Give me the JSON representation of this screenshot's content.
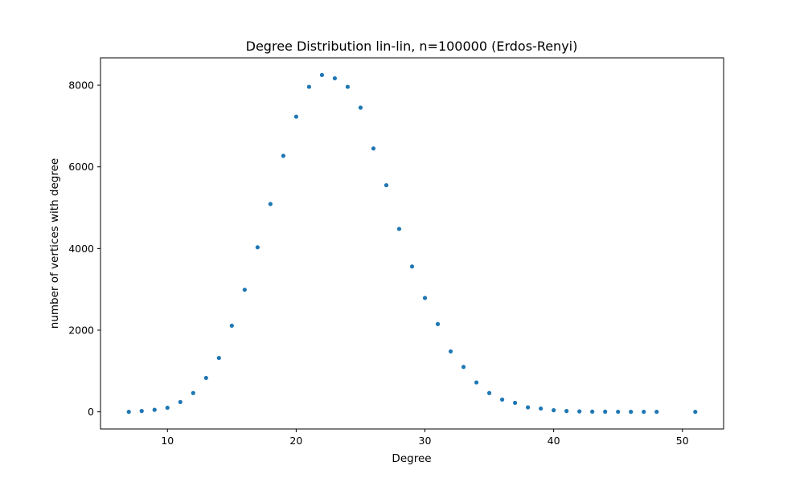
{
  "chart_data": {
    "type": "scatter",
    "title": "Degree Distribution lin-lin, n=100000 (Erdos-Renyi)",
    "xlabel": "Degree",
    "ylabel": "number of vertices with degree",
    "xlim": [
      4.8,
      53.2
    ],
    "ylim": [
      -420,
      8670
    ],
    "xticks": [
      10,
      20,
      30,
      40,
      50
    ],
    "yticks": [
      0,
      2000,
      4000,
      6000,
      8000
    ],
    "grid": false,
    "marker_color": "#1f77b4",
    "x": [
      7,
      8,
      9,
      10,
      11,
      12,
      13,
      14,
      15,
      16,
      17,
      18,
      19,
      20,
      21,
      22,
      23,
      24,
      25,
      26,
      27,
      28,
      29,
      30,
      31,
      32,
      33,
      34,
      35,
      36,
      37,
      38,
      39,
      40,
      41,
      42,
      43,
      44,
      45,
      46,
      47,
      48,
      51
    ],
    "y": [
      0,
      20,
      50,
      100,
      240,
      460,
      830,
      1320,
      2110,
      2990,
      4030,
      5090,
      6270,
      7230,
      7960,
      8250,
      8170,
      7960,
      7450,
      6450,
      5550,
      4480,
      3560,
      2790,
      2150,
      1480,
      1100,
      720,
      460,
      300,
      220,
      110,
      80,
      40,
      20,
      10,
      5,
      3,
      2,
      1,
      1,
      1,
      0
    ]
  }
}
